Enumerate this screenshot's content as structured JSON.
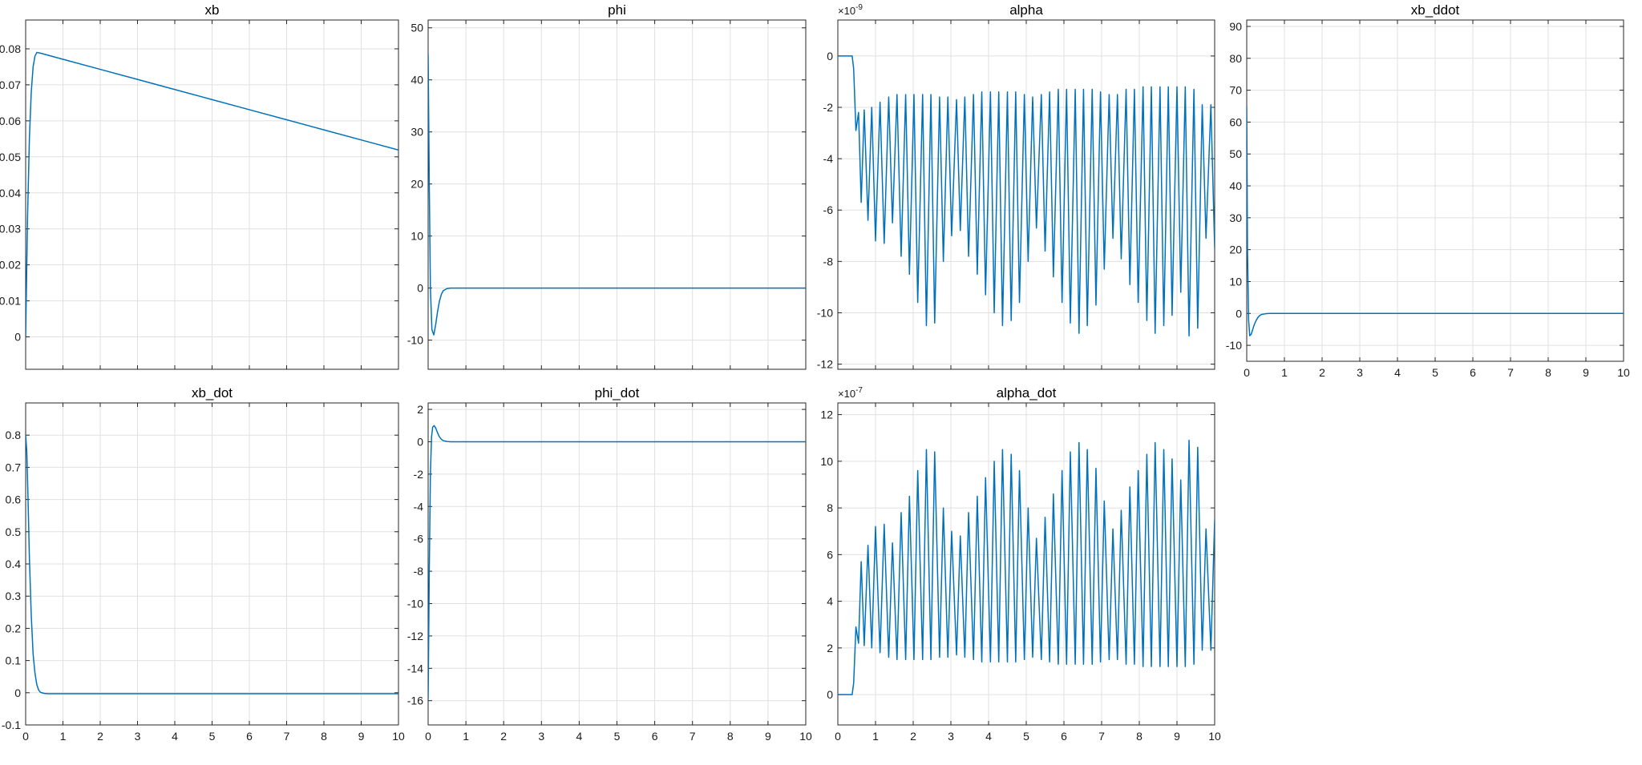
{
  "colors": {
    "series": "#0072BD",
    "grid": "#e0e0e0",
    "axes": "#262626"
  },
  "chart_data": [
    {
      "id": "xb",
      "type": "line",
      "title": "xb",
      "grid": true,
      "xlim": [
        0,
        10
      ],
      "ylim": [
        -0.009,
        0.088
      ],
      "xticks": [],
      "yticks": [
        "0",
        "0.01",
        "0.02",
        "0.03",
        "0.04",
        "0.05",
        "0.06",
        "0.07",
        "0.08"
      ],
      "series": [
        {
          "x": [
            0,
            0.05,
            0.1,
            0.15,
            0.2,
            0.25,
            0.3,
            0.4,
            1,
            2,
            3,
            4,
            5,
            6,
            7,
            8,
            9,
            10
          ],
          "y": [
            0,
            0.033,
            0.055,
            0.068,
            0.075,
            0.078,
            0.079,
            0.0788,
            0.0771,
            0.0743,
            0.0715,
            0.0687,
            0.0659,
            0.0631,
            0.0603,
            0.0575,
            0.0547,
            0.0519
          ]
        }
      ]
    },
    {
      "id": "phi",
      "type": "line",
      "title": "phi",
      "grid": true,
      "xlim": [
        0,
        10
      ],
      "ylim": [
        -15.6,
        51.5
      ],
      "xticks": [],
      "yticks": [
        "-10",
        "0",
        "10",
        "20",
        "30",
        "40",
        "50"
      ],
      "series": [
        {
          "x": [
            0,
            0.03,
            0.06,
            0.1,
            0.15,
            0.2,
            0.25,
            0.3,
            0.35,
            0.4,
            0.5,
            0.6,
            0.8,
            1,
            10
          ],
          "y": [
            45,
            20,
            0,
            -8,
            -9,
            -7,
            -4.5,
            -2.5,
            -1.2,
            -0.5,
            -0.1,
            0,
            0,
            0,
            0
          ]
        }
      ]
    },
    {
      "id": "alpha",
      "type": "line",
      "title": "alpha",
      "grid": true,
      "exponent": "×10-9",
      "xlim": [
        0,
        10
      ],
      "ylim": [
        -12.2,
        1.4
      ],
      "xticks": [],
      "yticks": [
        "-12",
        "-10",
        "-8",
        "-6",
        "-4",
        "-2",
        "0"
      ],
      "series": [
        {
          "x": [
            0,
            0.38,
            0.42,
            0.48,
            0.55,
            0.62,
            0.7,
            0.8,
            0.9,
            1.0,
            1.12,
            1.23,
            1.35,
            1.45,
            1.57,
            1.68,
            1.8,
            1.9,
            2.02,
            2.12,
            2.25,
            2.35,
            2.47,
            2.57,
            2.7,
            2.8,
            2.92,
            3.02,
            3.15,
            3.25,
            3.37,
            3.47,
            3.6,
            3.7,
            3.82,
            3.92,
            4.05,
            4.15,
            4.27,
            4.37,
            4.5,
            4.6,
            4.72,
            4.82,
            4.95,
            5.05,
            5.17,
            5.27,
            5.4,
            5.5,
            5.62,
            5.72,
            5.85,
            5.95,
            6.07,
            6.17,
            6.3,
            6.4,
            6.52,
            6.62,
            6.75,
            6.85,
            6.97,
            7.07,
            7.2,
            7.3,
            7.42,
            7.52,
            7.65,
            7.75,
            7.87,
            7.97,
            8.1,
            8.2,
            8.32,
            8.42,
            8.55,
            8.65,
            8.77,
            8.87,
            9.0,
            9.1,
            9.22,
            9.32,
            9.45,
            9.55,
            9.67,
            9.77,
            9.9,
            10
          ],
          "y": [
            0,
            0,
            -0.5,
            -2.9,
            -2.2,
            -5.7,
            -2.1,
            -6.4,
            -2,
            -7.2,
            -1.8,
            -7.3,
            -1.6,
            -6.5,
            -1.5,
            -7.8,
            -1.5,
            -8.5,
            -1.5,
            -9.6,
            -1.5,
            -10.5,
            -1.5,
            -10.4,
            -1.6,
            -8,
            -1.6,
            -7,
            -1.7,
            -6.8,
            -1.6,
            -7.8,
            -1.5,
            -8.5,
            -1.4,
            -9.3,
            -1.4,
            -10,
            -1.4,
            -10.5,
            -1.4,
            -10.3,
            -1.4,
            -9.6,
            -1.5,
            -8,
            -1.6,
            -6.7,
            -1.5,
            -7.6,
            -1.4,
            -8.6,
            -1.3,
            -9.6,
            -1.3,
            -10.4,
            -1.3,
            -10.8,
            -1.3,
            -10.5,
            -1.3,
            -9.7,
            -1.4,
            -8.3,
            -1.5,
            -7.1,
            -1.5,
            -7.9,
            -1.3,
            -8.9,
            -1.3,
            -9.6,
            -1.2,
            -10.3,
            -1.2,
            -10.8,
            -1.2,
            -10.5,
            -1.2,
            -10.1,
            -1.2,
            -9.2,
            -1.2,
            -10.9,
            -1.3,
            -10.6,
            -1.9,
            -7.1,
            -1.9,
            -7.5
          ]
        }
      ]
    },
    {
      "id": "xb_ddot",
      "type": "line",
      "title": "xb_ddot",
      "grid": true,
      "xlim": [
        0,
        10
      ],
      "ylim": [
        -15,
        92
      ],
      "xticks": [
        "0",
        "1",
        "2",
        "3",
        "4",
        "5",
        "6",
        "7",
        "8",
        "9",
        "10"
      ],
      "yticks": [
        "-10",
        "0",
        "10",
        "20",
        "30",
        "40",
        "50",
        "60",
        "70",
        "80",
        "90"
      ],
      "series": [
        {
          "x": [
            0,
            0.02,
            0.05,
            0.08,
            0.12,
            0.16,
            0.2,
            0.25,
            0.3,
            0.35,
            0.4,
            0.5,
            0.6,
            0.8,
            1,
            10
          ],
          "y": [
            65,
            20,
            -2,
            -7,
            -6.5,
            -5,
            -3.5,
            -2.2,
            -1.2,
            -0.6,
            -0.3,
            -0.1,
            0,
            0,
            0,
            0
          ]
        }
      ]
    },
    {
      "id": "xb_dot",
      "type": "line",
      "title": "xb_dot",
      "grid": true,
      "xlim": [
        0,
        10
      ],
      "ylim": [
        -0.1,
        0.9
      ],
      "xticks": [
        "0",
        "1",
        "2",
        "3",
        "4",
        "5",
        "6",
        "7",
        "8",
        "9",
        "10"
      ],
      "yticks": [
        "-0.1",
        "0",
        "0.1",
        "0.2",
        "0.3",
        "0.4",
        "0.5",
        "0.6",
        "0.7",
        "0.8"
      ],
      "series": [
        {
          "x": [
            0,
            0.03,
            0.06,
            0.1,
            0.15,
            0.2,
            0.25,
            0.3,
            0.35,
            0.4,
            0.5,
            0.6,
            1,
            10
          ],
          "y": [
            0.8,
            0.75,
            0.62,
            0.42,
            0.24,
            0.12,
            0.06,
            0.025,
            0.008,
            0.001,
            -0.002,
            -0.003,
            -0.003,
            -0.003
          ]
        }
      ]
    },
    {
      "id": "phi_dot",
      "type": "line",
      "title": "phi_dot",
      "grid": true,
      "xlim": [
        0,
        10
      ],
      "ylim": [
        -17.5,
        2.4
      ],
      "xticks": [
        "0",
        "1",
        "2",
        "3",
        "4",
        "5",
        "6",
        "7",
        "8",
        "9",
        "10"
      ],
      "yticks": [
        "-16",
        "-14",
        "-12",
        "-10",
        "-8",
        "-6",
        "-4",
        "-2",
        "0",
        "2"
      ],
      "series": [
        {
          "x": [
            0,
            0.03,
            0.06,
            0.09,
            0.12,
            0.16,
            0.2,
            0.25,
            0.3,
            0.35,
            0.4,
            0.5,
            0.6,
            0.8,
            1,
            10
          ],
          "y": [
            -16,
            -8,
            -2,
            0.3,
            0.9,
            1.0,
            0.85,
            0.55,
            0.3,
            0.15,
            0.07,
            0.02,
            0,
            0,
            0,
            0
          ]
        }
      ]
    },
    {
      "id": "alpha_dot",
      "type": "line",
      "title": "alpha_dot",
      "grid": true,
      "exponent": "×10-7",
      "xlim": [
        0,
        10
      ],
      "ylim": [
        -1.3,
        12.5
      ],
      "xticks": [
        "0",
        "1",
        "2",
        "3",
        "4",
        "5",
        "6",
        "7",
        "8",
        "9",
        "10"
      ],
      "yticks": [
        "0",
        "2",
        "4",
        "6",
        "8",
        "10",
        "12"
      ],
      "series": [
        {
          "x": [
            0,
            0.38,
            0.42,
            0.48,
            0.55,
            0.62,
            0.7,
            0.8,
            0.9,
            1.0,
            1.12,
            1.23,
            1.35,
            1.45,
            1.57,
            1.68,
            1.8,
            1.9,
            2.02,
            2.12,
            2.25,
            2.35,
            2.47,
            2.57,
            2.7,
            2.8,
            2.92,
            3.02,
            3.15,
            3.25,
            3.37,
            3.47,
            3.6,
            3.7,
            3.82,
            3.92,
            4.05,
            4.15,
            4.27,
            4.37,
            4.5,
            4.6,
            4.72,
            4.82,
            4.95,
            5.05,
            5.17,
            5.27,
            5.4,
            5.5,
            5.62,
            5.72,
            5.85,
            5.95,
            6.07,
            6.17,
            6.3,
            6.4,
            6.52,
            6.62,
            6.75,
            6.85,
            6.97,
            7.07,
            7.2,
            7.3,
            7.42,
            7.52,
            7.65,
            7.75,
            7.87,
            7.97,
            8.1,
            8.2,
            8.32,
            8.42,
            8.55,
            8.65,
            8.77,
            8.87,
            9.0,
            9.1,
            9.22,
            9.32,
            9.45,
            9.55,
            9.67,
            9.77,
            9.9,
            10
          ],
          "y": [
            0,
            0,
            0.5,
            2.9,
            2.2,
            5.7,
            2.1,
            6.4,
            2,
            7.2,
            1.8,
            7.3,
            1.6,
            6.5,
            1.5,
            7.8,
            1.5,
            8.5,
            1.5,
            9.6,
            1.5,
            10.5,
            1.5,
            10.4,
            1.6,
            8,
            1.6,
            7,
            1.7,
            6.8,
            1.6,
            7.8,
            1.5,
            8.5,
            1.4,
            9.3,
            1.4,
            10,
            1.4,
            10.5,
            1.4,
            10.3,
            1.4,
            9.6,
            1.5,
            8,
            1.6,
            6.7,
            1.5,
            7.6,
            1.4,
            8.6,
            1.3,
            9.6,
            1.3,
            10.4,
            1.3,
            10.8,
            1.3,
            10.5,
            1.3,
            9.7,
            1.4,
            8.3,
            1.5,
            7.1,
            1.5,
            7.9,
            1.3,
            8.9,
            1.3,
            9.6,
            1.2,
            10.3,
            1.2,
            10.8,
            1.2,
            10.5,
            1.2,
            10.1,
            1.2,
            9.2,
            1.2,
            10.9,
            1.3,
            10.6,
            1.9,
            7.1,
            1.9,
            7.5
          ]
        }
      ]
    }
  ]
}
